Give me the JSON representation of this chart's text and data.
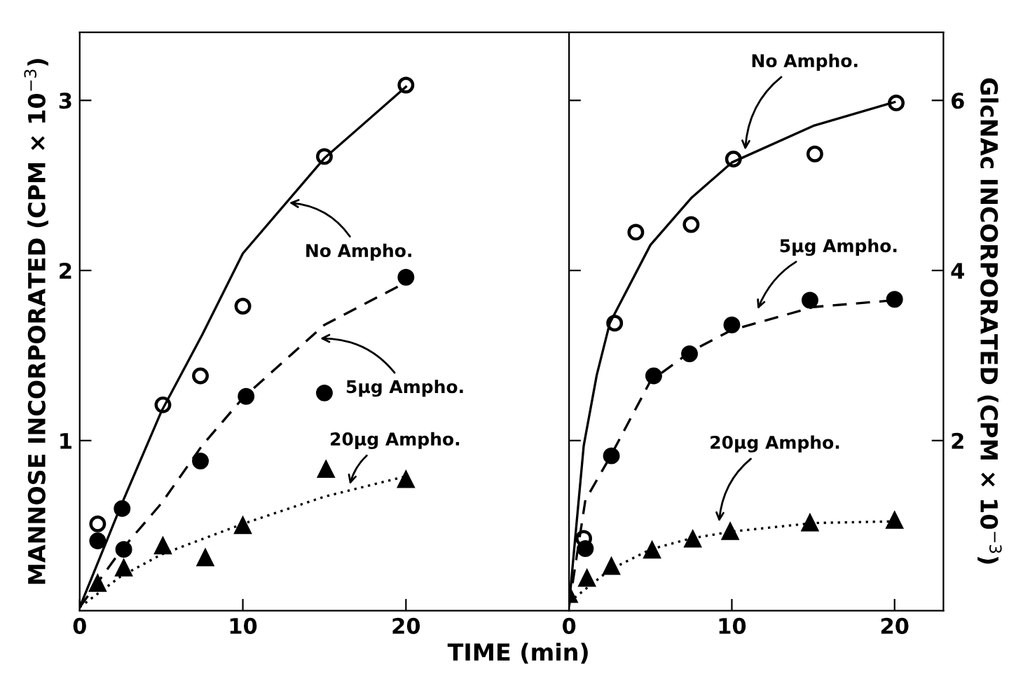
{
  "chart_data": [
    {
      "type": "scatter",
      "xlabel": "TIME (min)",
      "ylabel": "MANNOSE INCORPORATED (CPM × 10$^{−3}$)",
      "xlim": [
        0,
        30
      ],
      "xticks": [
        0,
        10,
        20
      ],
      "ylim": [
        0,
        3.4
      ],
      "yticks": [
        1,
        2,
        3
      ],
      "grid": false,
      "legend": false,
      "series": [
        {
          "marker": "circle",
          "color": "#ffffff",
          "x": [
            1.1,
            5.1,
            7.4,
            10.0,
            15.0,
            20.0
          ],
          "values": [
            0.51,
            1.21,
            1.38,
            1.79,
            2.67,
            3.09
          ]
        },
        {
          "marker": "circle",
          "color": "#000000",
          "x": [
            1.1,
            2.6,
            2.7,
            7.4,
            10.2,
            15.0,
            20.0
          ],
          "values": [
            0.41,
            0.6,
            0.36,
            0.88,
            1.26,
            1.28,
            1.96
          ]
        },
        {
          "marker": "triangle",
          "color": "#000000",
          "x": [
            1.1,
            2.7,
            5.1,
            7.7,
            10.0,
            15.1,
            20.0
          ],
          "values": [
            0.16,
            0.25,
            0.38,
            0.31,
            0.5,
            0.83,
            0.77
          ]
        },
        {
          "type": "line",
          "line_style": "solid",
          "color": "#000000",
          "x": [
            0,
            2.5,
            5,
            7.5,
            10,
            15,
            20
          ],
          "values": [
            0.02,
            0.61,
            1.17,
            1.62,
            2.1,
            2.66,
            3.08
          ]
        },
        {
          "type": "line",
          "line_style": "dashed",
          "color": "#000000",
          "x": [
            0,
            2.5,
            5,
            7.5,
            10,
            15,
            20
          ],
          "values": [
            0.02,
            0.35,
            0.63,
            0.97,
            1.25,
            1.68,
            1.93
          ]
        },
        {
          "type": "line",
          "line_style": "dotted",
          "color": "#000000",
          "x": [
            0,
            2.5,
            5,
            10,
            15,
            20
          ],
          "values": [
            0.02,
            0.2,
            0.33,
            0.51,
            0.67,
            0.79
          ]
        }
      ],
      "annotations": [
        {
          "text": "No Ampho.",
          "x": 12.6,
          "y": 2.4
        },
        {
          "text": "5μg Ampho.",
          "x": 14.5,
          "y": 1.6
        },
        {
          "text": "20μg Ampho.",
          "x": 16.5,
          "y": 0.72
        }
      ]
    },
    {
      "type": "scatter",
      "y2label": "GlcNAc INCORPORATED (CPM × 10$^{−3}$)",
      "xlim": [
        0,
        23
      ],
      "xticks": [
        0,
        10,
        20
      ],
      "y2lim": [
        0,
        6.8
      ],
      "y2ticks": [
        2,
        4,
        6
      ],
      "grid": false,
      "legend": false,
      "series": [
        {
          "axis": "y2",
          "marker": "circle",
          "color": "#ffffff",
          "x": [
            0.9,
            2.8,
            4.1,
            7.5,
            10.1,
            15.1,
            20.1
          ],
          "values": [
            0.85,
            3.38,
            4.45,
            4.54,
            5.31,
            5.37,
            5.97
          ]
        },
        {
          "axis": "y2",
          "marker": "circle",
          "color": "#000000",
          "x": [
            1.0,
            2.6,
            5.2,
            7.4,
            10.0,
            14.8,
            20.0
          ],
          "values": [
            0.73,
            1.82,
            2.76,
            3.02,
            3.36,
            3.65,
            3.66
          ]
        },
        {
          "axis": "y2",
          "marker": "triangle",
          "color": "#000000",
          "x": [
            0,
            1.1,
            2.6,
            5.1,
            7.6,
            9.9,
            14.8,
            20.0
          ],
          "values": [
            0.19,
            0.38,
            0.52,
            0.71,
            0.84,
            0.93,
            1.03,
            1.06
          ]
        },
        {
          "type": "line",
          "axis": "y2",
          "line_style": "solid",
          "color": "#000000",
          "x": [
            0,
            0.9,
            1.7,
            2.5,
            5,
            7.5,
            10,
            15,
            20
          ],
          "values": [
            0.07,
            1.94,
            2.77,
            3.38,
            4.3,
            4.85,
            5.27,
            5.7,
            5.98
          ]
        },
        {
          "type": "line",
          "axis": "y2",
          "line_style": "dashed",
          "color": "#000000",
          "x": [
            0,
            1,
            2.5,
            5,
            7.5,
            10,
            15,
            20
          ],
          "values": [
            0.05,
            1.3,
            1.8,
            2.7,
            3.05,
            3.3,
            3.57,
            3.65
          ]
        },
        {
          "type": "line",
          "axis": "y2",
          "line_style": "dotted",
          "color": "#000000",
          "x": [
            0,
            2.5,
            5,
            7.5,
            10,
            15,
            20
          ],
          "values": [
            0.1,
            0.48,
            0.72,
            0.85,
            0.93,
            1.03,
            1.05
          ]
        }
      ],
      "annotations": [
        "No Ampho.",
        "5μg Ampho.",
        "20μg Ampho."
      ]
    }
  ]
}
